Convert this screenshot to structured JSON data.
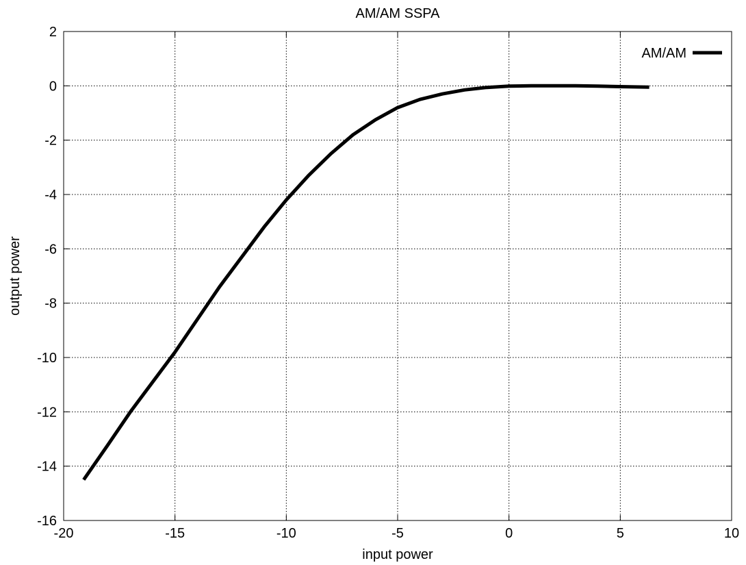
{
  "chart_data": {
    "type": "line",
    "title": "AM/AM SSPA",
    "xlabel": "input power",
    "ylabel": "output power",
    "xlim": [
      -20,
      10
    ],
    "ylim": [
      -16,
      2
    ],
    "xticks": [
      "-20",
      "-15",
      "-10",
      "-5",
      "0",
      "5",
      "10"
    ],
    "yticks": [
      "2",
      "0",
      "-2",
      "-4",
      "-6",
      "-8",
      "-10",
      "-12",
      "-14",
      "-16"
    ],
    "grid": true,
    "legend": {
      "position": "top-right",
      "entries": [
        "AM/AM"
      ]
    },
    "series": [
      {
        "name": "AM/AM",
        "color": "#000000",
        "x": [
          -19.1,
          -18.0,
          -17.0,
          -16.0,
          -15.0,
          -14.0,
          -13.0,
          -12.0,
          -11.0,
          -10.0,
          -9.0,
          -8.0,
          -7.0,
          -6.0,
          -5.0,
          -4.0,
          -3.0,
          -2.0,
          -1.0,
          0.0,
          1.0,
          2.0,
          3.0,
          4.0,
          5.0,
          6.3
        ],
        "y": [
          -14.5,
          -13.2,
          -12.0,
          -10.9,
          -9.8,
          -8.6,
          -7.4,
          -6.3,
          -5.2,
          -4.2,
          -3.3,
          -2.5,
          -1.8,
          -1.25,
          -0.8,
          -0.5,
          -0.3,
          -0.15,
          -0.06,
          -0.01,
          0.0,
          0.0,
          0.0,
          -0.01,
          -0.03,
          -0.05
        ]
      }
    ]
  }
}
